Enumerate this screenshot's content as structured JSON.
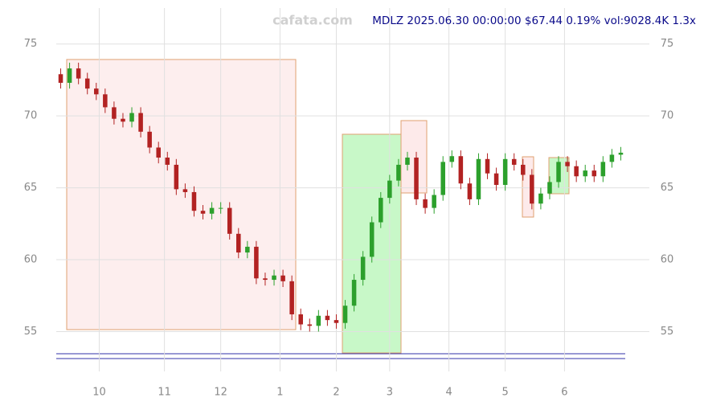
{
  "chart_data": {
    "type": "candlestick",
    "title": "MDLZ 2025.06.30 00:00:00 $67.44 0.19% vol:9028.4K 1.3x",
    "watermark": "cafata.com",
    "x": [
      0,
      3,
      6,
      9,
      12,
      15,
      18,
      21,
      24,
      27,
      30,
      33,
      36,
      39,
      42,
      45,
      48,
      51,
      54,
      57,
      60,
      63,
      66,
      69,
      72,
      75,
      78,
      81,
      84,
      87,
      90,
      93,
      96,
      99,
      102,
      105,
      108,
      111,
      114,
      117,
      120,
      123,
      126,
      129,
      132,
      135,
      138,
      141,
      144,
      147,
      150,
      153,
      156,
      159,
      162,
      165,
      168,
      171,
      174,
      177,
      180,
      183,
      186,
      189
    ],
    "open": [
      72.9,
      72.3,
      73.3,
      72.6,
      71.9,
      71.5,
      70.6,
      69.8,
      69.6,
      70.2,
      68.9,
      67.8,
      67.1,
      66.6,
      64.9,
      64.7,
      63.4,
      63.2,
      63.6,
      63.6,
      61.8,
      60.5,
      60.9,
      58.7,
      58.6,
      58.9,
      58.5,
      56.2,
      55.5,
      55.4,
      56.1,
      55.8,
      55.6,
      56.8,
      58.6,
      60.2,
      62.6,
      64.3,
      65.5,
      66.6,
      67.1,
      64.2,
      63.6,
      64.5,
      66.8,
      67.2,
      65.3,
      64.2,
      67.0,
      66.0,
      65.2,
      67.0,
      66.6,
      65.9,
      63.9,
      64.6,
      65.4,
      66.8,
      66.5,
      65.8,
      66.2,
      65.8,
      66.8,
      67.3
    ],
    "high": [
      73.3,
      73.7,
      73.7,
      73.0,
      72.3,
      71.9,
      71.0,
      70.2,
      70.6,
      70.6,
      69.3,
      68.2,
      67.5,
      67.0,
      65.3,
      65.1,
      63.8,
      64.0,
      64.0,
      64.0,
      62.2,
      61.3,
      61.3,
      59.1,
      59.3,
      59.3,
      58.9,
      56.6,
      55.9,
      56.5,
      56.5,
      56.2,
      57.2,
      59.0,
      60.6,
      63.0,
      64.7,
      65.9,
      67.0,
      67.5,
      67.5,
      64.6,
      64.9,
      67.2,
      67.6,
      67.6,
      65.7,
      67.4,
      67.4,
      66.4,
      67.4,
      67.4,
      67.0,
      66.3,
      65.0,
      65.8,
      67.2,
      67.2,
      66.9,
      66.6,
      66.6,
      67.2,
      67.7,
      67.84
    ],
    "low": [
      71.9,
      71.9,
      72.2,
      71.5,
      71.1,
      70.2,
      69.4,
      69.2,
      69.2,
      68.5,
      67.4,
      66.7,
      66.2,
      64.5,
      64.3,
      63.0,
      62.8,
      62.8,
      63.2,
      61.4,
      60.1,
      60.1,
      58.3,
      58.2,
      58.2,
      58.1,
      55.8,
      55.1,
      55.0,
      55.0,
      55.4,
      55.2,
      55.2,
      56.4,
      58.2,
      59.8,
      62.2,
      63.9,
      65.1,
      66.2,
      63.8,
      63.2,
      63.2,
      64.1,
      66.4,
      64.9,
      63.8,
      63.8,
      65.6,
      64.8,
      64.8,
      66.2,
      65.5,
      63.5,
      63.5,
      64.2,
      65.0,
      66.1,
      65.4,
      65.4,
      65.4,
      65.4,
      66.4,
      66.9
    ],
    "close": [
      72.3,
      73.3,
      72.6,
      71.9,
      71.5,
      70.6,
      69.8,
      69.6,
      70.2,
      68.9,
      67.8,
      67.1,
      66.6,
      64.9,
      64.7,
      63.4,
      63.2,
      63.6,
      63.6,
      61.8,
      60.5,
      60.9,
      58.7,
      58.6,
      58.9,
      58.5,
      56.2,
      55.5,
      55.4,
      56.1,
      55.8,
      55.6,
      56.8,
      58.6,
      60.2,
      62.6,
      64.3,
      65.5,
      66.6,
      67.1,
      64.2,
      63.6,
      64.5,
      66.8,
      67.2,
      65.3,
      64.2,
      67.0,
      66.0,
      65.2,
      67.0,
      66.6,
      65.9,
      63.9,
      64.6,
      65.4,
      66.8,
      66.5,
      65.8,
      66.2,
      65.8,
      66.8,
      67.3,
      67.44
    ],
    "up_color": "#2ca02c",
    "down_color": "#b22222",
    "xlim": [
      -1.5,
      190.5
    ],
    "xticks": [
      {
        "value": 13,
        "label": "10"
      },
      {
        "value": 35,
        "label": "11"
      },
      {
        "value": 54,
        "label": "12"
      },
      {
        "value": 74,
        "label": "1"
      },
      {
        "value": 93,
        "label": "2"
      },
      {
        "value": 111,
        "label": "3"
      },
      {
        "value": 131,
        "label": "4"
      },
      {
        "value": 150,
        "label": "5"
      },
      {
        "value": 170,
        "label": "6"
      }
    ],
    "ylim": [
      52.9,
      77.5
    ],
    "yticks": [
      55,
      60,
      65,
      70,
      75
    ],
    "grid": true
  }
}
